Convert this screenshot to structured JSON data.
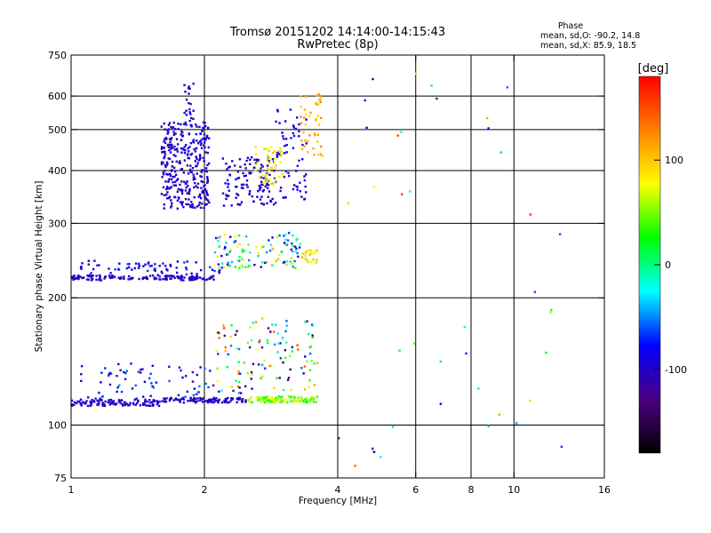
{
  "chart_data": {
    "type": "scatter",
    "title": "Tromsø 20151202 14:14:00-14:15:43",
    "subtitle": "RwPretec (8p)",
    "xlabel": "Frequency [MHz]",
    "ylabel": "Stationary phase Virtual Height [km]",
    "x_scale": "log",
    "y_scale": "log",
    "xlim": [
      1,
      16
    ],
    "ylim": [
      75,
      750
    ],
    "x_ticks": [
      1,
      2,
      4,
      6,
      8,
      10,
      16
    ],
    "x_tick_labels": [
      "1",
      "2",
      "4",
      "6",
      "8",
      "10",
      "16"
    ],
    "y_ticks": [
      75,
      100,
      200,
      300,
      400,
      500,
      600,
      750
    ],
    "y_tick_labels": [
      "75",
      "100",
      "200",
      "300",
      "400",
      "500",
      "600",
      "750"
    ],
    "x_grid": [
      2,
      4,
      6,
      8,
      10
    ],
    "y_grid": [
      100,
      200,
      300,
      400,
      500,
      600
    ],
    "grid": true,
    "stats": {
      "heading": "Phase",
      "line_o": "mean, sd,O: -90.2, 14.8",
      "line_x": "mean, sd,X:  85.9, 18.5"
    },
    "colorbar": {
      "label": "[deg]",
      "range": [
        -180,
        180
      ],
      "ticks": [
        100,
        0,
        -100
      ],
      "tick_labels": [
        "100",
        "0",
        "-100"
      ],
      "colors": [
        "#000000",
        "#4b0082",
        "#0000ff",
        "#00ffff",
        "#00ff00",
        "#ffff00",
        "#ff8000",
        "#ff0000"
      ]
    },
    "series_clusters": [
      {
        "x": [
          1.0,
          1.6
        ],
        "y": [
          111,
          115
        ],
        "n": 110,
        "phase": [
          -110,
          -90
        ]
      },
      {
        "x": [
          1.6,
          2.5
        ],
        "y": [
          113,
          116
        ],
        "n": 90,
        "phase": [
          -110,
          -90
        ]
      },
      {
        "x": [
          2.5,
          3.6
        ],
        "y": [
          113,
          117
        ],
        "n": 110,
        "phase": [
          20,
          80
        ]
      },
      {
        "x": [
          1.05,
          2.1
        ],
        "y": [
          115,
          140
        ],
        "n": 70,
        "phase": [
          -120,
          -50
        ]
      },
      {
        "x": [
          2.1,
          3.6
        ],
        "y": [
          118,
          180
        ],
        "n": 120,
        "phase": [
          -150,
          150
        ]
      },
      {
        "x": [
          1.0,
          2.1
        ],
        "y": [
          220,
          226
        ],
        "n": 140,
        "phase": [
          -115,
          -90
        ]
      },
      {
        "x": [
          1.05,
          2.2
        ],
        "y": [
          226,
          245
        ],
        "n": 70,
        "phase": [
          -110,
          -60
        ]
      },
      {
        "x": [
          2.1,
          3.3
        ],
        "y": [
          235,
          285
        ],
        "n": 110,
        "phase": [
          -110,
          110
        ]
      },
      {
        "x": [
          3.3,
          3.6
        ],
        "y": [
          240,
          260
        ],
        "n": 25,
        "phase": [
          60,
          120
        ]
      },
      {
        "x": [
          1.6,
          2.05
        ],
        "y": [
          325,
          520
        ],
        "n": 330,
        "phase": [
          -115,
          -80
        ]
      },
      {
        "x": [
          1.8,
          1.9
        ],
        "y": [
          520,
          650
        ],
        "n": 20,
        "phase": [
          -110,
          -85
        ]
      },
      {
        "x": [
          2.2,
          2.9
        ],
        "y": [
          330,
          430
        ],
        "n": 120,
        "phase": [
          -110,
          -85
        ]
      },
      {
        "x": [
          2.6,
          3.0
        ],
        "y": [
          370,
          460
        ],
        "n": 50,
        "phase": [
          60,
          110
        ]
      },
      {
        "x": [
          2.9,
          3.4
        ],
        "y": [
          340,
          560
        ],
        "n": 60,
        "phase": [
          -110,
          -70
        ]
      },
      {
        "x": [
          3.3,
          3.7
        ],
        "y": [
          430,
          610
        ],
        "n": 50,
        "phase": [
          80,
          130
        ]
      },
      {
        "x": [
          4.0,
          13.0
        ],
        "y": [
          80,
          680
        ],
        "n": 40,
        "phase": [
          -150,
          160
        ]
      }
    ]
  }
}
